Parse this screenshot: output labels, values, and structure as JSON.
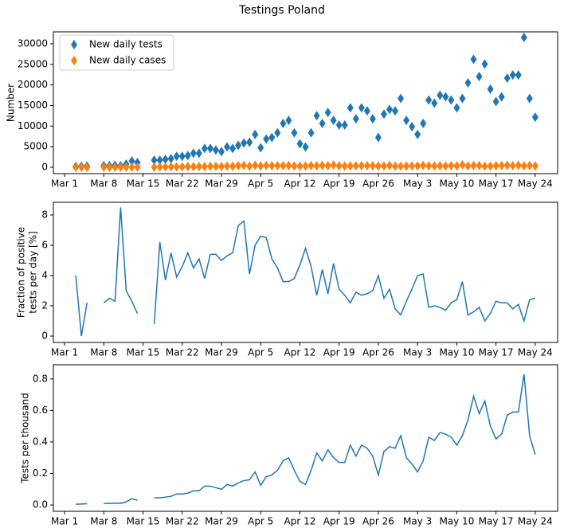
{
  "title": "Testings Poland",
  "chart_data": [
    {
      "type": "scatter",
      "ylabel": [
        "Number"
      ],
      "legend": "upper left",
      "x": [
        "Mar 3",
        "Mar 4",
        "Mar 5",
        "Mar 6",
        "Mar 7",
        "Mar 8",
        "Mar 9",
        "Mar 10",
        "Mar 11",
        "Mar 12",
        "Mar 13",
        "Mar 14",
        "Mar 15",
        "Mar 16",
        "Mar 17",
        "Mar 18",
        "Mar 19",
        "Mar 20",
        "Mar 21",
        "Mar 22",
        "Mar 23",
        "Mar 24",
        "Mar 25",
        "Mar 26",
        "Mar 27",
        "Mar 28",
        "Mar 29",
        "Mar 30",
        "Mar 31",
        "Apr 1",
        "Apr 2",
        "Apr 3",
        "Apr 4",
        "Apr 5",
        "Apr 6",
        "Apr 7",
        "Apr 8",
        "Apr 9",
        "Apr 10",
        "Apr 11",
        "Apr 12",
        "Apr 13",
        "Apr 14",
        "Apr 15",
        "Apr 16",
        "Apr 17",
        "Apr 18",
        "Apr 19",
        "Apr 20",
        "Apr 21",
        "Apr 22",
        "Apr 23",
        "Apr 24",
        "Apr 25",
        "Apr 26",
        "Apr 27",
        "Apr 28",
        "Apr 29",
        "Apr 30",
        "May 1",
        "May 2",
        "May 3",
        "May 4",
        "May 5",
        "May 6",
        "May 7",
        "May 8",
        "May 9",
        "May 10",
        "May 11",
        "May 12",
        "May 13",
        "May 14",
        "May 15",
        "May 16",
        "May 17",
        "May 18",
        "May 19",
        "May 20",
        "May 21",
        "May 22",
        "May 23",
        "May 24"
      ],
      "series": [
        {
          "name": "New daily tests",
          "color": "#1f77b4",
          "values": [
            190,
            230,
            300,
            null,
            null,
            380,
            380,
            460,
            380,
            760,
            1520,
            1140,
            null,
            null,
            1710,
            1710,
            1900,
            2090,
            2660,
            2660,
            2850,
            3420,
            3420,
            4560,
            4560,
            4180,
            3800,
            4940,
            4560,
            5320,
            5890,
            6080,
            7980,
            4750,
            6840,
            7220,
            8360,
            10640,
            11400,
            8360,
            5700,
            4940,
            8360,
            12540,
            10640,
            13300,
            11400,
            10260,
            10260,
            14440,
            11780,
            14440,
            13680,
            11780,
            7220,
            12920,
            14060,
            13680,
            16720,
            11400,
            9880,
            7980,
            10640,
            16340,
            15580,
            17480,
            17100,
            16340,
            14440,
            16720,
            20520,
            26220,
            22040,
            25080,
            19000,
            15960,
            17100,
            21660,
            22420,
            22420,
            31540,
            16720,
            12160
          ]
        },
        {
          "name": "New daily cases",
          "color": "#ff7f0e",
          "values": [
            8,
            0,
            7,
            null,
            null,
            8,
            10,
            11,
            32,
            23,
            35,
            17,
            null,
            null,
            14,
            106,
            70,
            115,
            104,
            122,
            157,
            154,
            174,
            173,
            246,
            226,
            190,
            262,
            251,
            388,
            448,
            249,
            479,
            314,
            445,
            368,
            376,
            383,
            410,
            318,
            268,
            287,
            385,
            339,
            468,
            372,
            547,
            318,
            277,
            318,
            342,
            390,
            383,
            353,
            289,
            323,
            436,
            246,
            234,
            262,
            306,
            319,
            436,
            310,
            312,
            332,
            291,
            359,
            347,
            602,
            287,
            420,
            419,
            251,
            285,
            367,
            376,
            477,
            404,
            471,
            315,
            401,
            304
          ]
        }
      ],
      "xlim": [
        "Feb 28",
        "May 28"
      ],
      "xticks": [
        "Mar 1",
        "Mar 8",
        "Mar 15",
        "Mar 22",
        "Mar 29",
        "Apr 5",
        "Apr 12",
        "Apr 19",
        "Apr 26",
        "May 3",
        "May 10",
        "May 17",
        "May 24"
      ],
      "ylim": [
        -1550,
        32900
      ],
      "yticks": [
        0,
        5000,
        10000,
        15000,
        20000,
        25000,
        30000
      ]
    },
    {
      "type": "line",
      "ylabel": [
        "Fraction of positive",
        "tests per day [%]"
      ],
      "color": "#1f77b4",
      "x": [
        "Mar 3",
        "Mar 4",
        "Mar 5",
        "Mar 6",
        "Mar 7",
        "Mar 8",
        "Mar 9",
        "Mar 10",
        "Mar 11",
        "Mar 12",
        "Mar 13",
        "Mar 14",
        "Mar 15",
        "Mar 16",
        "Mar 17",
        "Mar 18",
        "Mar 19",
        "Mar 20",
        "Mar 21",
        "Mar 22",
        "Mar 23",
        "Mar 24",
        "Mar 25",
        "Mar 26",
        "Mar 27",
        "Mar 28",
        "Mar 29",
        "Mar 30",
        "Mar 31",
        "Apr 1",
        "Apr 2",
        "Apr 3",
        "Apr 4",
        "Apr 5",
        "Apr 6",
        "Apr 7",
        "Apr 8",
        "Apr 9",
        "Apr 10",
        "Apr 11",
        "Apr 12",
        "Apr 13",
        "Apr 14",
        "Apr 15",
        "Apr 16",
        "Apr 17",
        "Apr 18",
        "Apr 19",
        "Apr 20",
        "Apr 21",
        "Apr 22",
        "Apr 23",
        "Apr 24",
        "Apr 25",
        "Apr 26",
        "Apr 27",
        "Apr 28",
        "Apr 29",
        "Apr 30",
        "May 1",
        "May 2",
        "May 3",
        "May 4",
        "May 5",
        "May 6",
        "May 7",
        "May 8",
        "May 9",
        "May 10",
        "May 11",
        "May 12",
        "May 13",
        "May 14",
        "May 15",
        "May 16",
        "May 17",
        "May 18",
        "May 19",
        "May 20",
        "May 21",
        "May 22",
        "May 23",
        "May 24"
      ],
      "values": [
        4.0,
        0,
        2.2,
        null,
        null,
        2.2,
        2.5,
        2.3,
        8.5,
        3.0,
        2.3,
        1.5,
        null,
        null,
        0.8,
        6.2,
        3.7,
        5.5,
        3.9,
        4.6,
        5.5,
        4.5,
        5.1,
        3.8,
        5.4,
        5.4,
        5.0,
        5.3,
        5.5,
        7.3,
        7.6,
        4.1,
        6.0,
        6.6,
        6.5,
        5.1,
        4.5,
        3.6,
        3.6,
        3.8,
        4.7,
        5.8,
        4.6,
        2.7,
        4.4,
        2.8,
        4.8,
        3.1,
        2.7,
        2.2,
        2.9,
        2.7,
        2.8,
        3.0,
        4.0,
        2.5,
        3.1,
        1.8,
        1.4,
        2.3,
        3.1,
        4.0,
        4.1,
        1.9,
        2.0,
        1.9,
        1.7,
        2.2,
        2.4,
        3.6,
        1.4,
        1.6,
        1.9,
        1.0,
        1.5,
        2.3,
        2.2,
        2.2,
        1.8,
        2.1,
        1.0,
        2.4,
        2.5
      ],
      "xlim": [
        "Feb 28",
        "May 28"
      ],
      "xticks": [
        "Mar 1",
        "Mar 8",
        "Mar 15",
        "Mar 22",
        "Mar 29",
        "Apr 5",
        "Apr 12",
        "Apr 19",
        "Apr 26",
        "May 3",
        "May 10",
        "May 17",
        "May 24"
      ],
      "ylim": [
        -0.42,
        8.84
      ],
      "yticks": [
        0,
        2,
        4,
        6,
        8
      ]
    },
    {
      "type": "line",
      "ylabel": [
        "Tests per thousand"
      ],
      "color": "#1f77b4",
      "x": [
        "Mar 3",
        "Mar 4",
        "Mar 5",
        "Mar 6",
        "Mar 7",
        "Mar 8",
        "Mar 9",
        "Mar 10",
        "Mar 11",
        "Mar 12",
        "Mar 13",
        "Mar 14",
        "Mar 15",
        "Mar 16",
        "Mar 17",
        "Mar 18",
        "Mar 19",
        "Mar 20",
        "Mar 21",
        "Mar 22",
        "Mar 23",
        "Mar 24",
        "Mar 25",
        "Mar 26",
        "Mar 27",
        "Mar 28",
        "Mar 29",
        "Mar 30",
        "Mar 31",
        "Apr 1",
        "Apr 2",
        "Apr 3",
        "Apr 4",
        "Apr 5",
        "Apr 6",
        "Apr 7",
        "Apr 8",
        "Apr 9",
        "Apr 10",
        "Apr 11",
        "Apr 12",
        "Apr 13",
        "Apr 14",
        "Apr 15",
        "Apr 16",
        "Apr 17",
        "Apr 18",
        "Apr 19",
        "Apr 20",
        "Apr 21",
        "Apr 22",
        "Apr 23",
        "Apr 24",
        "Apr 25",
        "Apr 26",
        "Apr 27",
        "Apr 28",
        "Apr 29",
        "Apr 30",
        "May 1",
        "May 2",
        "May 3",
        "May 4",
        "May 5",
        "May 6",
        "May 7",
        "May 8",
        "May 9",
        "May 10",
        "May 11",
        "May 12",
        "May 13",
        "May 14",
        "May 15",
        "May 16",
        "May 17",
        "May 18",
        "May 19",
        "May 20",
        "May 21",
        "May 22",
        "May 23",
        "May 24"
      ],
      "values": [
        0.005,
        0.006,
        0.008,
        null,
        null,
        0.01,
        0.01,
        0.012,
        0.01,
        0.02,
        0.04,
        0.03,
        null,
        null,
        0.045,
        0.045,
        0.05,
        0.055,
        0.07,
        0.07,
        0.075,
        0.09,
        0.09,
        0.12,
        0.12,
        0.11,
        0.1,
        0.13,
        0.12,
        0.14,
        0.155,
        0.16,
        0.21,
        0.125,
        0.18,
        0.19,
        0.22,
        0.28,
        0.3,
        0.22,
        0.15,
        0.13,
        0.22,
        0.33,
        0.28,
        0.35,
        0.3,
        0.27,
        0.27,
        0.38,
        0.31,
        0.38,
        0.36,
        0.31,
        0.19,
        0.34,
        0.37,
        0.36,
        0.44,
        0.3,
        0.26,
        0.21,
        0.28,
        0.43,
        0.41,
        0.46,
        0.45,
        0.43,
        0.38,
        0.44,
        0.54,
        0.69,
        0.58,
        0.66,
        0.5,
        0.42,
        0.45,
        0.57,
        0.59,
        0.59,
        0.83,
        0.44,
        0.32
      ],
      "xlim": [
        "Feb 28",
        "May 28"
      ],
      "xticks": [
        "Mar 1",
        "Mar 8",
        "Mar 15",
        "Mar 22",
        "Mar 29",
        "Apr 5",
        "Apr 12",
        "Apr 19",
        "Apr 26",
        "May 3",
        "May 10",
        "May 17",
        "May 24"
      ],
      "ylim": [
        -0.04,
        0.89
      ],
      "yticks": [
        {
          "value": 0,
          "label": "0.0"
        },
        0.2,
        0.4,
        0.6,
        0.8
      ]
    }
  ]
}
